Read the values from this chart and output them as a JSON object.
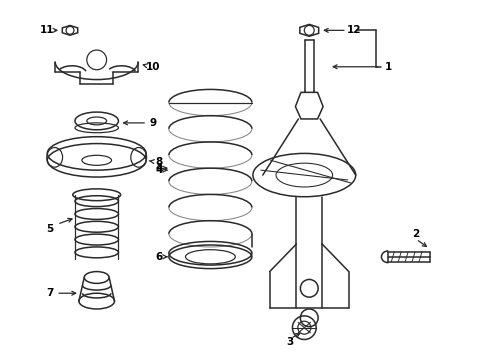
{
  "bg_color": "#ffffff",
  "line_color": "#2a2a2a",
  "label_color": "#000000",
  "fig_width": 4.89,
  "fig_height": 3.6,
  "dpi": 100,
  "fontsize": 7.5
}
